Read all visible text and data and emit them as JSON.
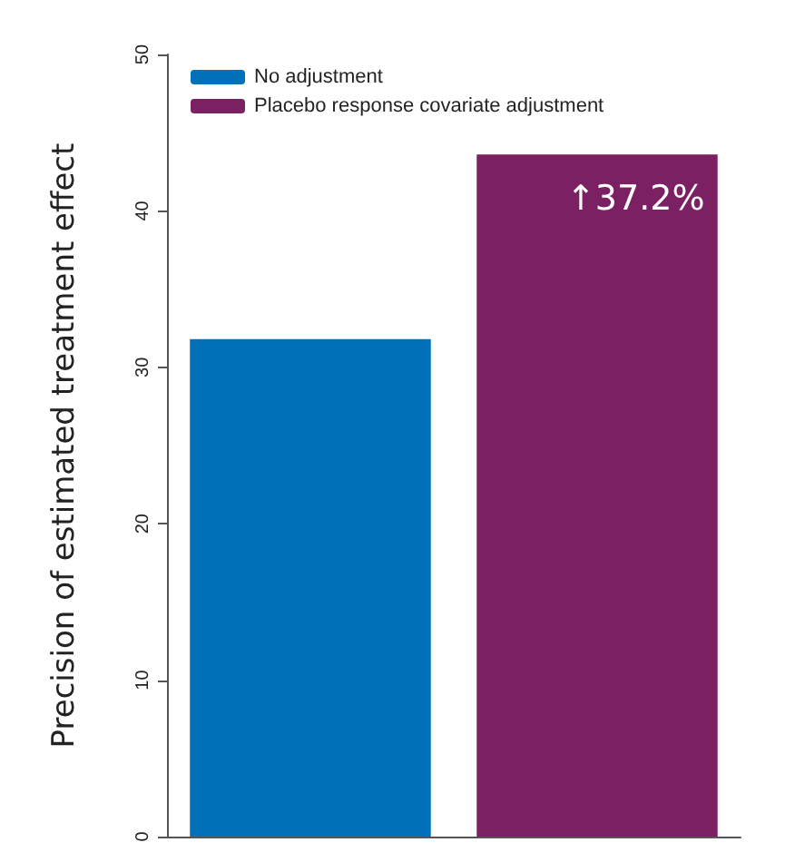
{
  "chart_data": {
    "type": "bar",
    "ylabel": "Precision of estimated treatment effect",
    "categories": [
      null,
      null
    ],
    "series": [
      {
        "name": "No adjustment",
        "color": "#0070b8",
        "values": [
          31.8,
          null
        ]
      },
      {
        "name": "Placebo response covariate adjustment",
        "color": "#7b2062",
        "values": [
          null,
          43.6
        ]
      }
    ],
    "ylim": [
      0,
      50
    ],
    "yticks": [
      0,
      10,
      20,
      30,
      40,
      50
    ],
    "grid": false,
    "legend": "top left",
    "annotations": [
      "↑37.2%"
    ]
  }
}
